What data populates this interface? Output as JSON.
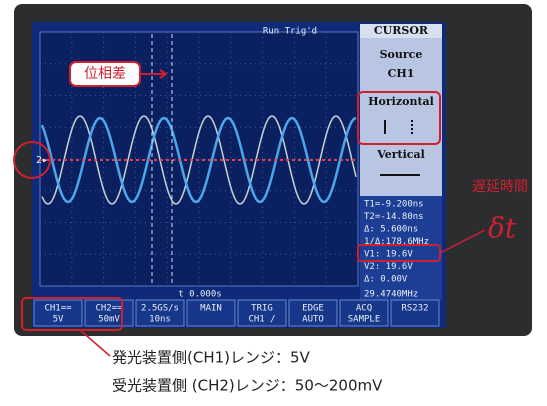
{
  "screen": {
    "status": "Run Trig'd",
    "menu_title": "CURSOR",
    "menu": [
      "Source",
      "CH1",
      "Horizontal",
      "Vertical"
    ],
    "readouts": [
      "T1=-9.200ns",
      "T2=-14.80ns",
      "Δ: 5.600ns",
      "1/Δ:178.6MHz",
      "V1: 19.6V",
      "V2: 19.6V",
      "Δ: 0.00V"
    ],
    "frequency": "29.4740MHz",
    "time_position": "t 0.000s",
    "channel_marker": "2▸",
    "bottom_bar": [
      [
        "CH1==",
        "5V"
      ],
      [
        "CH2==",
        "50mV"
      ],
      [
        "2.5GS/s",
        "10ns"
      ],
      [
        "MAIN",
        ""
      ],
      [
        "TRIG",
        "CH1 /"
      ],
      [
        "EDGE",
        "AUTO"
      ],
      [
        "ACQ",
        "SAMPLE"
      ],
      [
        "RS232",
        ""
      ]
    ]
  },
  "annotations": {
    "phase_difference": "位相差",
    "delay_time": "遅延時間",
    "delta_t": "δt",
    "ch1_range": "発光装置側(CH1)レンジ：5V",
    "ch2_range": "受光装置側 (CH2)レンジ：50〜200mV"
  }
}
